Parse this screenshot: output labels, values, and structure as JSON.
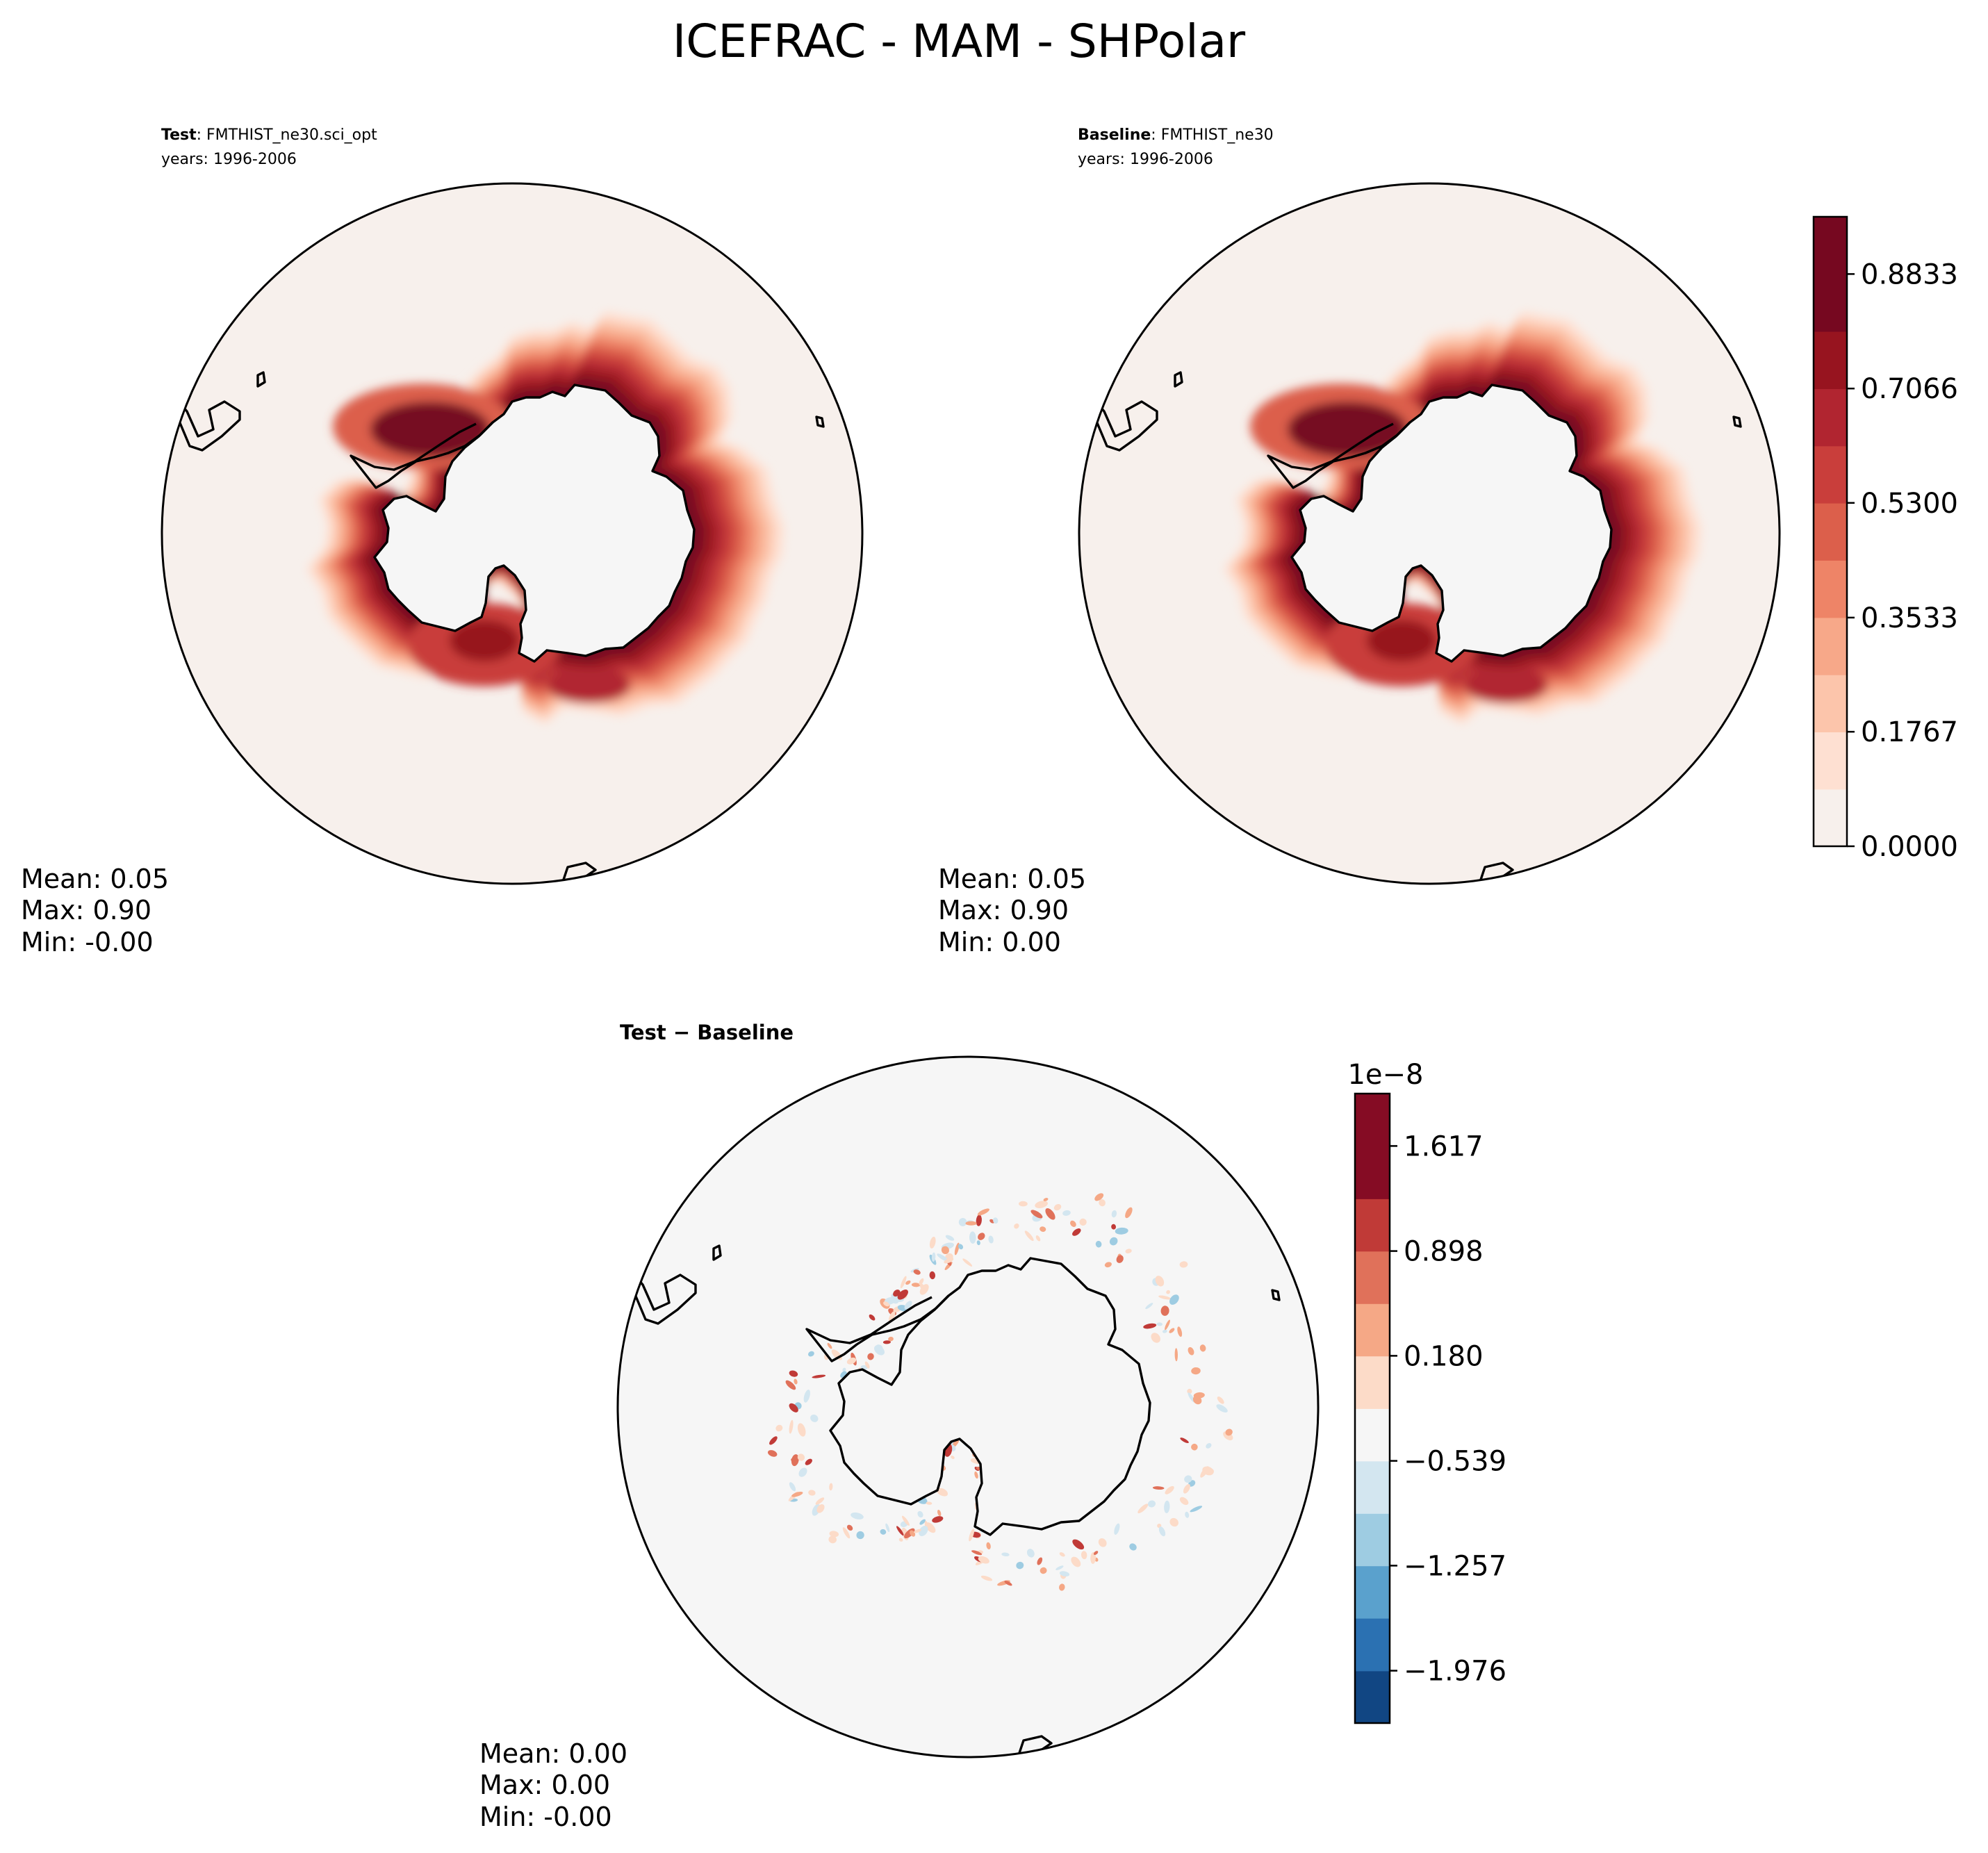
{
  "figure_title": "ICEFRAC - MAM - SHPolar",
  "colors": {
    "seq": [
      "#f7f0ec",
      "#fee0d2",
      "#fcc5ab",
      "#f7a889",
      "#ee8467",
      "#dc5f4b",
      "#c93e3b",
      "#b12530",
      "#97141f",
      "#760820"
    ],
    "div": [
      "#114683",
      "#2b71b2",
      "#5aa1cd",
      "#9ecce2",
      "#d3e6f0",
      "#f6f6f6",
      "#fcdbc8",
      "#f5a886",
      "#e0715a",
      "#c03a37",
      "#850c24"
    ],
    "ocean_seq": "#f7f0ec",
    "ocean_div": "#f6f6f6",
    "land": "#f6f6f6",
    "coast": "#000000"
  },
  "chart_data": [
    {
      "type": "heatmap",
      "panel": "test",
      "title_bold": "Test",
      "title_rest": ": FMTHIST_ne30.sci_opt",
      "years": "years: 1996-2006",
      "stats": [
        "Mean:  0.05",
        "Max:  0.90",
        "Min: -0.00"
      ],
      "projection": "south polar stereographic",
      "field_range": [
        0.0,
        0.9
      ]
    },
    {
      "type": "heatmap",
      "panel": "baseline",
      "title_bold": "Baseline",
      "title_rest": ": FMTHIST_ne30",
      "years": "years: 1996-2006",
      "stats": [
        "Mean:  0.05",
        "Max:  0.90",
        "Min:  0.00"
      ],
      "projection": "south polar stereographic",
      "field_range": [
        0.0,
        0.9
      ],
      "colorbar": {
        "levels": [
          0.0,
          0.0883,
          0.1767,
          0.265,
          0.3533,
          0.4417,
          0.53,
          0.6183,
          0.7066,
          0.795,
          0.8833,
          0.9717
        ],
        "tick_values": [
          0.0,
          0.1767,
          0.353,
          0.53,
          0.7066,
          0.8833
        ],
        "tick_labels": [
          "0.0000",
          "0.1767",
          "0.3533",
          "0.5300",
          "0.7066",
          "0.8833"
        ]
      }
    },
    {
      "type": "heatmap",
      "panel": "diff",
      "title": "Test − Baseline",
      "stats": [
        "Mean:  0.00",
        "Max:  0.00",
        "Min: -0.00"
      ],
      "projection": "south polar stereographic",
      "colorbar": {
        "scale_label": "1e−8",
        "levels": [
          -2.335,
          -1.976,
          -1.616,
          -1.257,
          -0.898,
          -0.539,
          -0.18,
          0.18,
          0.539,
          0.898,
          1.257,
          1.617,
          1.976
        ],
        "tick_values": [
          -1.976,
          -1.257,
          -0.539,
          0.18,
          0.898,
          1.617
        ],
        "tick_labels": [
          "−1.976",
          "−1.257",
          "−0.539",
          "0.180",
          "0.898",
          "1.617"
        ]
      }
    }
  ]
}
